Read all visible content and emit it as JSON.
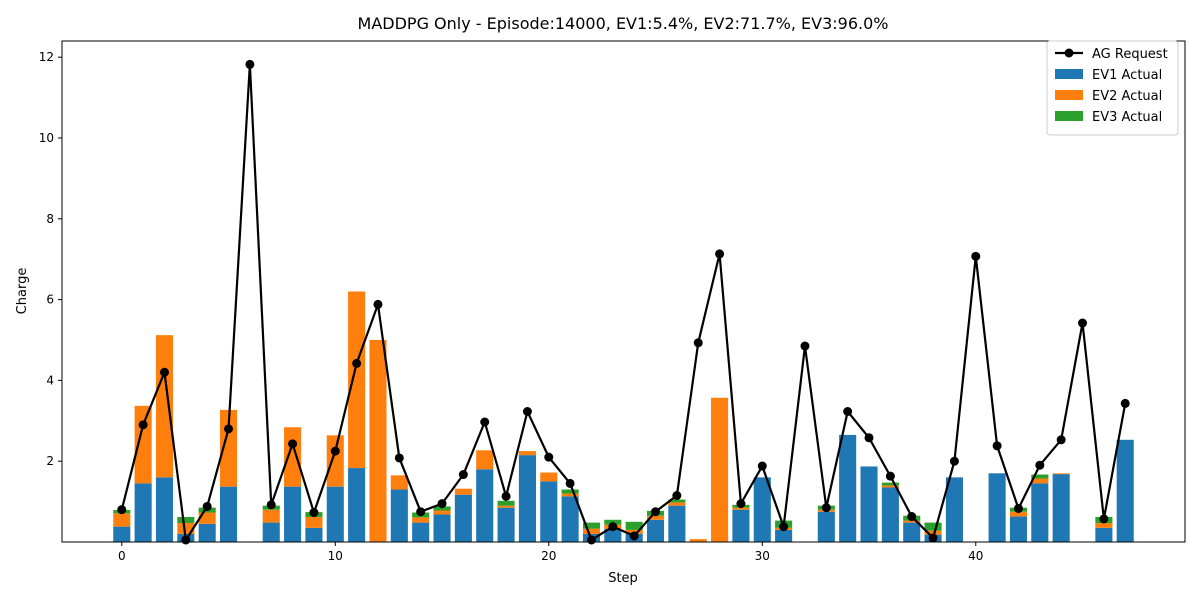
{
  "chart_data": {
    "type": "bar",
    "title": "MADDPG Only - Episode:14000, EV1:5.4%, EV2:71.7%, EV3:96.0%",
    "xlabel": "Step",
    "ylabel": "Charge",
    "xlim": [
      -2.8,
      49.8
    ],
    "ylim": [
      0,
      12.4
    ],
    "xticks": [
      0,
      10,
      20,
      30,
      40
    ],
    "yticks": [
      2,
      4,
      6,
      8,
      10,
      12
    ],
    "grid": false,
    "legend_position": "top-right",
    "stacked": true,
    "x": [
      0,
      1,
      2,
      3,
      4,
      5,
      6,
      7,
      8,
      9,
      10,
      11,
      12,
      13,
      14,
      15,
      16,
      17,
      18,
      19,
      20,
      21,
      22,
      23,
      24,
      25,
      26,
      27,
      28,
      29,
      30,
      31,
      32,
      33,
      34,
      35,
      36,
      37,
      38,
      39,
      40,
      41,
      42,
      43,
      44,
      45,
      46,
      47
    ],
    "series": [
      {
        "name": "EV1 Actual",
        "kind": "bar",
        "color": "#1f77b4",
        "values": [
          0.38,
          1.45,
          1.6,
          0.2,
          0.45,
          1.37,
          0,
          0.48,
          1.37,
          0.35,
          1.37,
          1.83,
          0,
          1.3,
          0.48,
          0.68,
          1.17,
          1.8,
          0.85,
          2.15,
          1.5,
          1.13,
          0.2,
          0.33,
          0.2,
          0.55,
          0.9,
          0,
          0,
          0.8,
          1.6,
          0.3,
          0,
          0.75,
          2.65,
          1.87,
          1.35,
          0.48,
          0.18,
          1.6,
          0,
          1.7,
          0.63,
          1.45,
          1.68,
          0,
          0.35,
          2.53
        ]
      },
      {
        "name": "EV2 Actual",
        "kind": "bar",
        "color": "#ff7f0e",
        "values": [
          0.33,
          1.92,
          3.52,
          0.27,
          0.28,
          1.9,
          0,
          0.32,
          1.47,
          0.27,
          1.27,
          4.37,
          5.0,
          0.35,
          0.13,
          0.1,
          0.15,
          0.47,
          0.05,
          0.1,
          0.22,
          0.07,
          0.13,
          0.1,
          0.1,
          0.1,
          0.08,
          0.07,
          3.57,
          0.05,
          0,
          0.05,
          0,
          0.05,
          0,
          0,
          0.05,
          0.05,
          0.1,
          0,
          0,
          0,
          0.12,
          0.12,
          0.02,
          0,
          0.12,
          0
        ]
      },
      {
        "name": "EV3 Actual",
        "kind": "bar",
        "color": "#2ca02c",
        "values": [
          0.08,
          0,
          0,
          0.15,
          0.12,
          0,
          0,
          0.1,
          0,
          0.12,
          0,
          0,
          0,
          0,
          0.12,
          0.1,
          0,
          0,
          0.12,
          0,
          0,
          0.1,
          0.15,
          0.12,
          0.2,
          0.12,
          0.07,
          0,
          0,
          0.07,
          0,
          0.18,
          0,
          0.1,
          0,
          0,
          0.07,
          0.12,
          0.2,
          0,
          0,
          0,
          0.1,
          0.1,
          0,
          0,
          0.15,
          0
        ]
      },
      {
        "name": "AG Request",
        "kind": "line",
        "color": "#000000",
        "values": [
          0.8,
          2.9,
          4.2,
          0.05,
          0.88,
          2.8,
          11.82,
          0.92,
          2.43,
          0.73,
          2.25,
          4.42,
          5.88,
          2.08,
          0.75,
          0.95,
          1.67,
          2.97,
          1.13,
          3.23,
          2.1,
          1.45,
          0.05,
          0.38,
          0.15,
          0.75,
          1.15,
          4.93,
          7.13,
          0.95,
          1.88,
          0.38,
          4.85,
          0.85,
          3.23,
          2.58,
          1.63,
          0.63,
          0.1,
          2.0,
          7.07,
          2.38,
          0.83,
          1.9,
          2.53,
          5.42,
          0.57,
          3.43
        ]
      }
    ]
  }
}
